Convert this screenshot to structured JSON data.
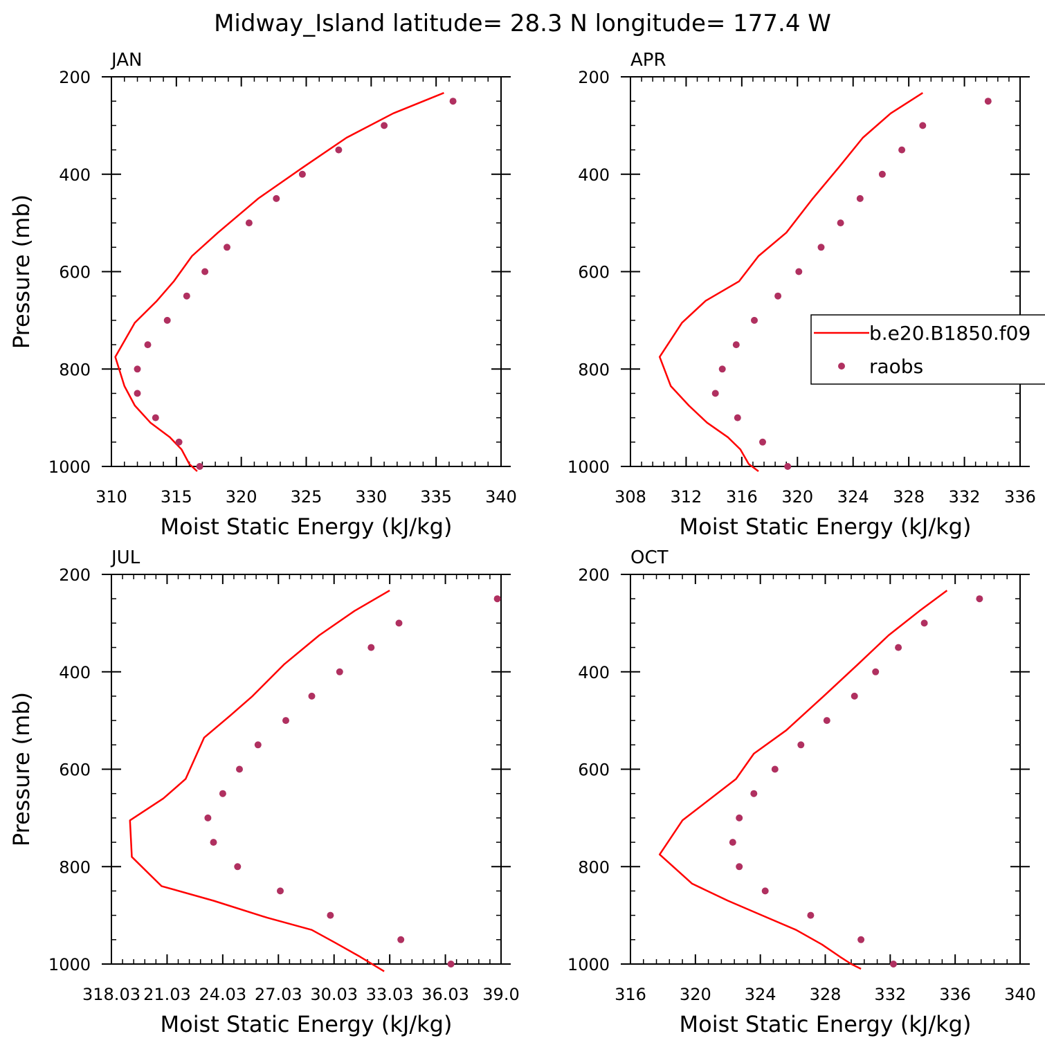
{
  "figure": {
    "title": "Midway_Island  latitude= 28.3 N longitude= 177.4 W"
  },
  "style": {
    "model_color": "#ff0000",
    "obs_color": "#b03060"
  },
  "legend": {
    "model_label": "b.e20.B1850.f09",
    "obs_label": "raobs"
  },
  "chart_data": [
    {
      "type": "line",
      "panel": "JAN",
      "xlabel": "Moist Static Energy (kJ/kg)",
      "ylabel": "Pressure (mb)",
      "xlim": [
        310,
        340
      ],
      "ylim": [
        200,
        1000
      ],
      "y_reversed": true,
      "x_ticks": [
        310,
        315,
        320,
        325,
        330,
        335,
        340
      ],
      "x_tick_labels": [
        "310",
        "315",
        "320",
        "325",
        "330",
        "335",
        "340"
      ],
      "y_ticks": [
        200,
        400,
        600,
        800,
        1000
      ],
      "y_tick_labels": [
        "200",
        "400",
        "600",
        "800",
        "1000"
      ],
      "series": [
        {
          "name": "b.e20.B1850.f09",
          "kind": "line",
          "x": [
            335.6,
            331.7,
            328.1,
            324.8,
            321.3,
            318.2,
            316.2,
            314.8,
            313.5,
            311.8,
            310.3,
            311.0,
            311.8,
            313.0,
            314.5,
            315.4,
            316.0,
            316.6
          ],
          "y": [
            233,
            275,
            325,
            385,
            450,
            520,
            568,
            620,
            660,
            705,
            775,
            835,
            875,
            910,
            940,
            965,
            995,
            1010
          ]
        },
        {
          "name": "raobs",
          "kind": "scatter",
          "x": [
            336.3,
            331.0,
            327.5,
            324.7,
            322.7,
            320.6,
            318.9,
            317.2,
            315.8,
            314.3,
            312.8,
            312.0,
            312.0,
            313.4,
            315.2,
            316.8
          ],
          "y": [
            250,
            300,
            350,
            400,
            450,
            500,
            550,
            600,
            650,
            700,
            750,
            800,
            850,
            900,
            950,
            1000
          ]
        }
      ]
    },
    {
      "type": "line",
      "panel": "APR",
      "xlabel": "Moist Static Energy (kJ/kg)",
      "ylabel": "",
      "xlim": [
        308,
        336
      ],
      "ylim": [
        200,
        1000
      ],
      "y_reversed": true,
      "x_ticks": [
        308,
        312,
        316,
        320,
        324,
        328,
        332,
        336
      ],
      "x_tick_labels": [
        "308",
        "312",
        "316",
        "320",
        "324",
        "328",
        "332",
        "336"
      ],
      "y_ticks": [
        200,
        400,
        600,
        800,
        1000
      ],
      "y_tick_labels": [
        "200",
        "400",
        "600",
        "800",
        "1000"
      ],
      "series": [
        {
          "name": "b.e20.B1850.f09",
          "kind": "line",
          "x": [
            329.0,
            326.7,
            324.7,
            323.0,
            321.1,
            319.2,
            317.2,
            315.8,
            313.4,
            311.7,
            310.1,
            310.9,
            312.2,
            313.5,
            315.0,
            315.9,
            316.5,
            317.2
          ],
          "y": [
            233,
            275,
            325,
            385,
            450,
            520,
            568,
            620,
            660,
            705,
            775,
            835,
            875,
            910,
            940,
            965,
            995,
            1010
          ]
        },
        {
          "name": "raobs",
          "kind": "scatter",
          "x": [
            333.7,
            329.0,
            327.5,
            326.1,
            324.5,
            323.1,
            321.7,
            320.1,
            318.6,
            316.9,
            315.6,
            314.6,
            314.1,
            315.7,
            317.5,
            319.3
          ],
          "y": [
            250,
            300,
            350,
            400,
            450,
            500,
            550,
            600,
            650,
            700,
            750,
            800,
            850,
            900,
            950,
            1000
          ]
        }
      ]
    },
    {
      "type": "line",
      "panel": "JUL",
      "xlabel": "Moist Static Energy (kJ/kg)",
      "ylabel": "Pressure (mb)",
      "xlim": [
        318.0,
        339.0
      ],
      "ylim": [
        200,
        1000
      ],
      "y_reversed": true,
      "x_ticks": [
        318,
        321,
        324,
        327,
        330,
        333,
        336,
        339
      ],
      "x_tick_labels": [
        "318.03",
        "21.03",
        "24.03",
        "27.03",
        "30.03",
        "33.03",
        "36.03",
        "39.0"
      ],
      "y_ticks": [
        200,
        400,
        600,
        800,
        1000
      ],
      "y_tick_labels": [
        "200",
        "400",
        "600",
        "800",
        "1000"
      ],
      "series": [
        {
          "name": "b.e20.B1850.f09",
          "kind": "line",
          "x": [
            333.0,
            331.1,
            329.2,
            327.3,
            325.6,
            324.4,
            323.0,
            322.0,
            320.8,
            319.0,
            319.1,
            320.7,
            323.5,
            326.4,
            328.8,
            330.0,
            331.4,
            332.7
          ],
          "y": [
            233,
            275,
            325,
            385,
            450,
            490,
            535,
            620,
            660,
            705,
            780,
            840,
            870,
            905,
            930,
            955,
            985,
            1015
          ]
        },
        {
          "name": "raobs",
          "kind": "scatter",
          "x": [
            338.8,
            333.5,
            332.0,
            330.3,
            328.8,
            327.4,
            325.9,
            324.9,
            324.0,
            323.2,
            323.5,
            324.8,
            327.1,
            329.8,
            333.6,
            336.3
          ],
          "y": [
            250,
            300,
            350,
            400,
            450,
            500,
            550,
            600,
            650,
            700,
            750,
            800,
            850,
            900,
            950,
            1000
          ]
        }
      ]
    },
    {
      "type": "line",
      "panel": "OCT",
      "xlabel": "Moist Static Energy (kJ/kg)",
      "ylabel": "",
      "xlim": [
        316,
        340
      ],
      "ylim": [
        200,
        1000
      ],
      "y_reversed": true,
      "x_ticks": [
        316,
        320,
        324,
        328,
        332,
        336,
        340
      ],
      "x_tick_labels": [
        "316",
        "320",
        "324",
        "328",
        "332",
        "336",
        "340"
      ],
      "y_ticks": [
        200,
        400,
        600,
        800,
        1000
      ],
      "y_tick_labels": [
        "200",
        "400",
        "600",
        "800",
        "1000"
      ],
      "series": [
        {
          "name": "b.e20.B1850.f09",
          "kind": "line",
          "x": [
            335.5,
            333.8,
            331.9,
            330.0,
            327.9,
            325.6,
            323.6,
            322.5,
            319.2,
            317.8,
            319.8,
            322.0,
            324.1,
            326.2,
            327.8,
            328.9,
            329.6,
            330.2
          ],
          "y": [
            233,
            275,
            325,
            385,
            450,
            520,
            568,
            620,
            705,
            775,
            835,
            870,
            900,
            930,
            960,
            985,
            1000,
            1010
          ]
        },
        {
          "name": "raobs",
          "kind": "scatter",
          "x": [
            337.5,
            334.1,
            332.5,
            331.1,
            329.8,
            328.1,
            326.5,
            324.9,
            323.6,
            322.7,
            322.3,
            322.7,
            324.3,
            327.1,
            330.2,
            332.2
          ],
          "y": [
            250,
            300,
            350,
            400,
            450,
            500,
            550,
            600,
            650,
            700,
            750,
            800,
            850,
            900,
            950,
            1000
          ]
        }
      ]
    }
  ]
}
